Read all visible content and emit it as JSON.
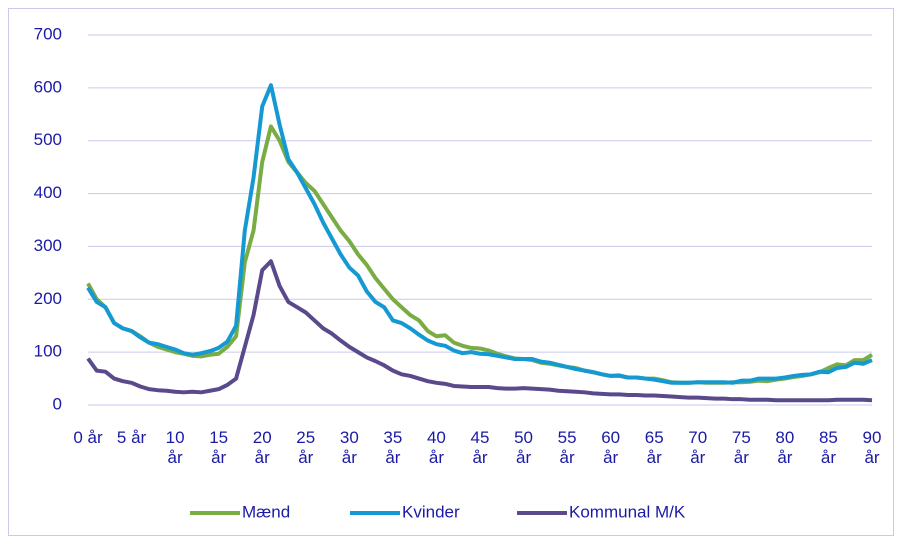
{
  "chart_data": {
    "type": "line",
    "categories": [
      "0 år",
      null,
      null,
      null,
      null,
      "5 år",
      null,
      null,
      null,
      null,
      "10 år",
      null,
      null,
      null,
      null,
      "15 år",
      null,
      null,
      null,
      null,
      "20 år",
      null,
      null,
      null,
      null,
      "25 år",
      null,
      null,
      null,
      null,
      "30 år",
      null,
      null,
      null,
      null,
      "35 år",
      null,
      null,
      null,
      null,
      "40 år",
      null,
      null,
      null,
      null,
      "45 år",
      null,
      null,
      null,
      null,
      "50 år",
      null,
      null,
      null,
      null,
      "55 år",
      null,
      null,
      null,
      null,
      "60 år",
      null,
      null,
      null,
      null,
      "65 år",
      null,
      null,
      null,
      null,
      "70 år",
      null,
      null,
      null,
      null,
      "75 år",
      null,
      null,
      null,
      null,
      "80 år",
      null,
      null,
      null,
      null,
      "85 år",
      null,
      null,
      null,
      null,
      "90 år"
    ],
    "series": [
      {
        "name": "Mænd",
        "color": "#7aac44",
        "values": [
          230,
          200,
          185,
          155,
          145,
          140,
          130,
          118,
          110,
          105,
          100,
          97,
          93,
          92,
          95,
          97,
          110,
          130,
          270,
          330,
          460,
          527,
          500,
          460,
          440,
          420,
          405,
          380,
          355,
          330,
          310,
          285,
          265,
          240,
          220,
          200,
          185,
          170,
          160,
          140,
          130,
          132,
          118,
          112,
          108,
          107,
          103,
          97,
          92,
          88,
          87,
          85,
          80,
          78,
          75,
          72,
          70,
          65,
          62,
          58,
          55,
          55,
          52,
          52,
          50,
          50,
          47,
          43,
          42,
          42,
          43,
          42,
          42,
          42,
          43,
          43,
          44,
          46,
          45,
          48,
          50,
          53,
          55,
          58,
          62,
          70,
          77,
          75,
          85,
          85,
          95
        ]
      },
      {
        "name": "Kvinder",
        "color": "#1499d3",
        "values": [
          222,
          195,
          185,
          155,
          145,
          140,
          128,
          118,
          115,
          110,
          105,
          98,
          95,
          98,
          102,
          108,
          120,
          150,
          330,
          430,
          565,
          605,
          530,
          465,
          440,
          410,
          380,
          345,
          315,
          285,
          260,
          245,
          215,
          195,
          185,
          160,
          155,
          145,
          133,
          122,
          115,
          112,
          103,
          98,
          100,
          97,
          96,
          93,
          90,
          87,
          87,
          87,
          82,
          80,
          76,
          72,
          68,
          65,
          62,
          58,
          55,
          56,
          52,
          52,
          50,
          48,
          45,
          42,
          42,
          42,
          43,
          43,
          43,
          43,
          42,
          46,
          46,
          50,
          50,
          50,
          52,
          55,
          57,
          58,
          63,
          62,
          70,
          72,
          80,
          78,
          85
        ]
      },
      {
        "name": "Kommunal M/K",
        "color": "#5a4a8c",
        "values": [
          88,
          65,
          63,
          50,
          45,
          42,
          35,
          30,
          28,
          27,
          25,
          24,
          25,
          24,
          27,
          30,
          38,
          50,
          110,
          170,
          255,
          272,
          225,
          195,
          185,
          175,
          160,
          145,
          135,
          122,
          110,
          100,
          90,
          83,
          75,
          65,
          58,
          55,
          50,
          45,
          42,
          40,
          36,
          35,
          34,
          34,
          34,
          32,
          31,
          31,
          32,
          31,
          30,
          29,
          27,
          26,
          25,
          24,
          22,
          21,
          20,
          20,
          19,
          19,
          18,
          18,
          17,
          16,
          15,
          14,
          14,
          13,
          12,
          12,
          11,
          11,
          10,
          10,
          10,
          9,
          9,
          9,
          9,
          9,
          9,
          9,
          10,
          10,
          10,
          10,
          9
        ]
      }
    ],
    "ylim": [
      0,
      700
    ],
    "yticks": [
      0,
      100,
      200,
      300,
      400,
      500,
      600,
      700
    ],
    "grid": true,
    "legend": "bottom"
  }
}
